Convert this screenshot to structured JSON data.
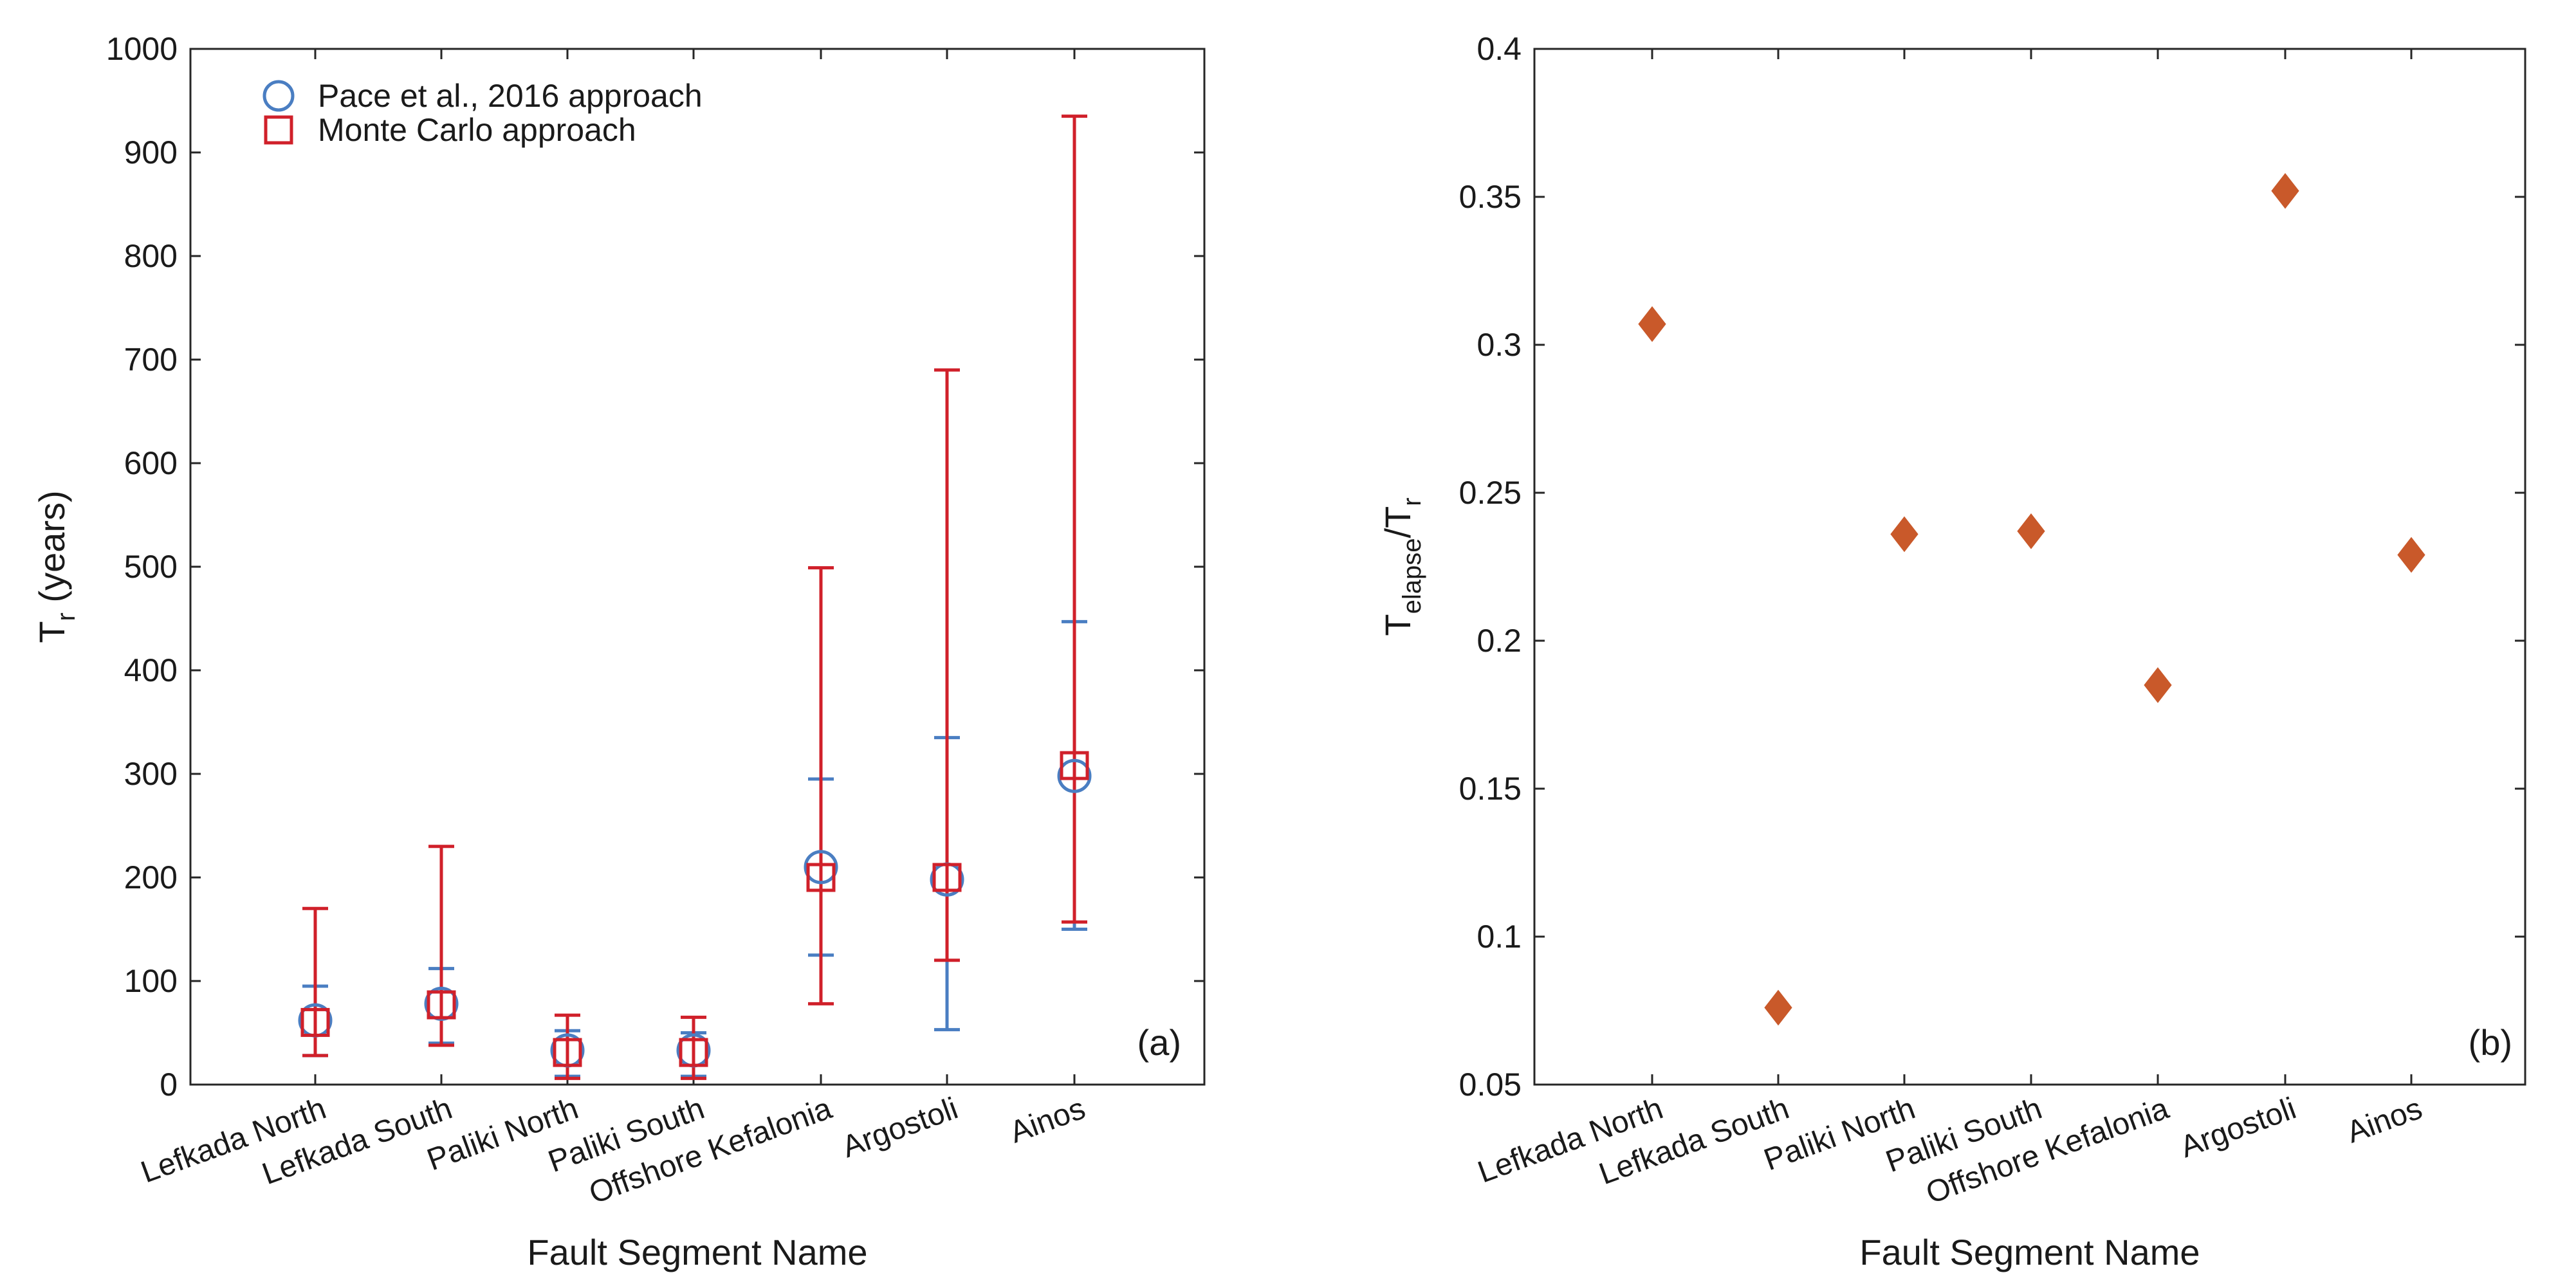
{
  "chart_data": [
    {
      "type": "scatter",
      "panel_label": "(a)",
      "categories": [
        "Lefkada North",
        "Lefkada South",
        "Paliki North",
        "Paliki South",
        "Offshore Kefalonia",
        "Argostoli",
        "Ainos"
      ],
      "xlabel": "Fault Segment Name",
      "ylabel_main": "T",
      "ylabel_sub": "r",
      "ylabel_suffix": " (years)",
      "ylim": [
        0,
        1000
      ],
      "yticks": [
        0,
        100,
        200,
        300,
        400,
        500,
        600,
        700,
        800,
        900,
        1000
      ],
      "legend_position": "top-left",
      "series": [
        {
          "name": "Pace et al., 2016 approach",
          "marker": "circle",
          "color": "#4a7ec2",
          "values": [
            62,
            78,
            33,
            33,
            210,
            198,
            298
          ],
          "lower": [
            28,
            40,
            8,
            8,
            125,
            53,
            150
          ],
          "upper": [
            95,
            112,
            52,
            50,
            295,
            335,
            447
          ]
        },
        {
          "name": "Monte Carlo approach",
          "marker": "square",
          "color": "#d0202a",
          "values": [
            60,
            77,
            31,
            31,
            200,
            200,
            308
          ],
          "lower": [
            28,
            38,
            6,
            6,
            78,
            120,
            157
          ],
          "upper": [
            170,
            230,
            67,
            65,
            499,
            690,
            935
          ]
        }
      ]
    },
    {
      "type": "scatter",
      "panel_label": "(b)",
      "categories": [
        "Lefkada North",
        "Lefkada South",
        "Paliki North",
        "Paliki South",
        "Offshore Kefalonia",
        "Argostoli",
        "Ainos"
      ],
      "xlabel": "Fault Segment Name",
      "ylabel_main": "T",
      "ylabel_sub1": "elapse",
      "ylabel_mid": "/T",
      "ylabel_sub2": "r",
      "ylim": [
        0.05,
        0.4
      ],
      "yticks": [
        "0.05",
        "0.1",
        "0.15",
        "0.2",
        "0.25",
        "0.3",
        "0.35",
        "0.4"
      ],
      "series": [
        {
          "name": "Telapse/Tr",
          "marker": "diamond",
          "color": "#c9592a",
          "values": [
            0.307,
            0.076,
            0.236,
            0.237,
            0.185,
            0.352,
            0.229
          ]
        }
      ]
    }
  ]
}
